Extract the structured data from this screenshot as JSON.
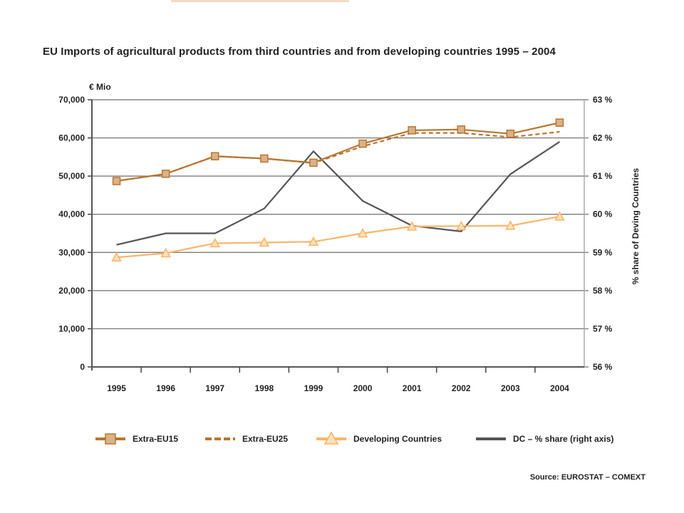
{
  "title": "EU Imports of agricultural products from third countries and from developing countries 1995 – 2004",
  "source": "Source: EUROSTAT – COMEXT",
  "chart_data": {
    "type": "line",
    "x": [
      "1995",
      "1996",
      "1997",
      "1998",
      "1999",
      "2000",
      "2001",
      "2002",
      "2003",
      "2004"
    ],
    "y_left": {
      "unit_label": "€ Mio",
      "ylim": [
        0,
        70000
      ],
      "ticks": [
        0,
        10000,
        20000,
        30000,
        40000,
        50000,
        60000,
        70000
      ],
      "tick_labels": [
        "0",
        "10,000",
        "20,000",
        "30,000",
        "40,000",
        "50,000",
        "60,000",
        "70,000"
      ]
    },
    "y_right": {
      "label": "% share of Deving Countries",
      "ylim": [
        56,
        63
      ],
      "ticks": [
        56,
        57,
        58,
        59,
        60,
        61,
        62,
        63
      ],
      "tick_labels": [
        "56 %",
        "57 %",
        "58 %",
        "59 %",
        "60 %",
        "61 %",
        "62 %",
        "63 %"
      ]
    },
    "grid": true,
    "legend_position": "bottom",
    "series": [
      {
        "name": "Extra-EU15",
        "axis": "left",
        "style": "solid-square-markers",
        "color": "#b8752e",
        "marker_fill": "#d9b28a",
        "values": [
          48700,
          50600,
          55200,
          54600,
          53500,
          58500,
          62000,
          62200,
          61100,
          64000
        ]
      },
      {
        "name": "Extra-EU25",
        "axis": "left",
        "style": "dashed",
        "color": "#b8752e",
        "values": [
          48700,
          50600,
          55200,
          54600,
          53400,
          57800,
          61300,
          61300,
          60200,
          61600
        ]
      },
      {
        "name": "Developing Countries",
        "axis": "left",
        "style": "solid-triangle-markers",
        "color": "#fbb468",
        "marker_fill": "#fde0b8",
        "values": [
          28700,
          29800,
          32400,
          32600,
          32800,
          35000,
          36800,
          36900,
          37000,
          39400
        ]
      },
      {
        "name": "DC – % share (right axis)",
        "axis": "right",
        "style": "solid",
        "color": "#555555",
        "values": [
          59.2,
          59.5,
          59.5,
          60.15,
          61.65,
          60.35,
          59.7,
          59.55,
          61.05,
          61.9
        ]
      }
    ]
  }
}
